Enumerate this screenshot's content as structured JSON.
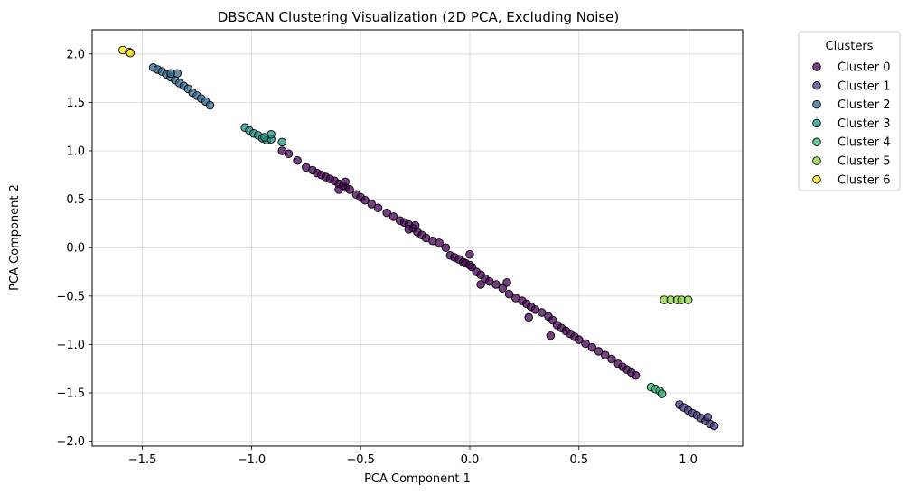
{
  "chart_data": {
    "type": "scatter",
    "title": "DBSCAN Clustering Visualization (2D PCA, Excluding Noise)",
    "xlabel": "PCA Component 1",
    "ylabel": "PCA Component 2",
    "xlim": [
      -1.73,
      1.25
    ],
    "ylim": [
      -2.05,
      2.25
    ],
    "xticks": [
      -1.5,
      -1.0,
      -0.5,
      0.0,
      0.5,
      1.0
    ],
    "xtick_labels": [
      "−1.5",
      "−1.0",
      "−0.5",
      "0.0",
      "0.5",
      "1.0"
    ],
    "yticks": [
      -2.0,
      -1.5,
      -1.0,
      -0.5,
      0.0,
      0.5,
      1.0,
      1.5,
      2.0
    ],
    "ytick_labels": [
      "−2.0",
      "−1.5",
      "−1.0",
      "−0.5",
      "0.0",
      "0.5",
      "1.0",
      "1.5",
      "2.0"
    ],
    "grid": true,
    "legend": {
      "title": "Clusters",
      "placement": "outside-upper-right"
    },
    "series": [
      {
        "name": "Cluster 0",
        "color": "#440154",
        "x": [
          -0.86,
          -0.83,
          -0.79,
          -0.75,
          -0.72,
          -0.7,
          -0.68,
          -0.66,
          -0.64,
          -0.62,
          -0.6,
          -0.58,
          -0.57,
          -0.55,
          -0.52,
          -0.5,
          -0.48,
          -0.45,
          -0.42,
          -0.38,
          -0.35,
          -0.32,
          -0.3,
          -0.28,
          -0.26,
          -0.24,
          -0.22,
          -0.2,
          -0.17,
          -0.14,
          -0.11,
          -0.09,
          -0.07,
          -0.05,
          -0.03,
          -0.02,
          0.0,
          0.01,
          0.03,
          0.05,
          0.07,
          0.09,
          0.12,
          0.15,
          0.18,
          0.21,
          0.24,
          0.26,
          0.28,
          0.3,
          0.33,
          0.36,
          0.38,
          0.4,
          0.42,
          0.44,
          0.46,
          0.48,
          0.5,
          0.53,
          0.56,
          0.59,
          0.62,
          0.65,
          0.68,
          0.7,
          0.72,
          0.74,
          0.76,
          -0.57,
          -0.25,
          0.0,
          0.05,
          0.17,
          0.27,
          0.37,
          -0.6,
          -0.28
        ],
        "y": [
          1.0,
          0.97,
          0.9,
          0.83,
          0.8,
          0.77,
          0.75,
          0.73,
          0.71,
          0.69,
          0.66,
          0.64,
          0.62,
          0.6,
          0.55,
          0.52,
          0.49,
          0.45,
          0.41,
          0.36,
          0.32,
          0.28,
          0.26,
          0.24,
          0.2,
          0.16,
          0.13,
          0.1,
          0.07,
          0.05,
          0.0,
          -0.08,
          -0.1,
          -0.12,
          -0.15,
          -0.16,
          -0.18,
          -0.2,
          -0.25,
          -0.28,
          -0.32,
          -0.35,
          -0.38,
          -0.42,
          -0.48,
          -0.52,
          -0.55,
          -0.58,
          -0.61,
          -0.64,
          -0.67,
          -0.71,
          -0.75,
          -0.8,
          -0.83,
          -0.86,
          -0.89,
          -0.92,
          -0.95,
          -0.99,
          -1.03,
          -1.07,
          -1.11,
          -1.15,
          -1.2,
          -1.23,
          -1.26,
          -1.29,
          -1.32,
          0.68,
          0.23,
          -0.07,
          -0.38,
          -0.36,
          -0.72,
          -0.91,
          0.6,
          0.19
        ]
      },
      {
        "name": "Cluster 1",
        "color": "#443983",
        "x": [
          0.96,
          0.98,
          1.0,
          1.02,
          1.04,
          1.06,
          1.08,
          1.1,
          1.12,
          1.09
        ],
        "y": [
          -1.62,
          -1.65,
          -1.68,
          -1.71,
          -1.73,
          -1.76,
          -1.79,
          -1.82,
          -1.84,
          -1.75
        ]
      },
      {
        "name": "Cluster 2",
        "color": "#31688e",
        "x": [
          -1.45,
          -1.43,
          -1.41,
          -1.39,
          -1.37,
          -1.35,
          -1.33,
          -1.31,
          -1.29,
          -1.27,
          -1.25,
          -1.23,
          -1.21,
          -1.19,
          -1.34,
          -1.37
        ],
        "y": [
          1.86,
          1.84,
          1.82,
          1.79,
          1.76,
          1.73,
          1.7,
          1.67,
          1.64,
          1.6,
          1.57,
          1.54,
          1.51,
          1.47,
          1.8,
          1.8
        ]
      },
      {
        "name": "Cluster 3",
        "color": "#21918c",
        "x": [
          -1.03,
          -1.01,
          -0.99,
          -0.97,
          -0.95,
          -0.93,
          -0.91,
          -0.91,
          -0.86,
          -0.94
        ],
        "y": [
          1.24,
          1.21,
          1.18,
          1.16,
          1.13,
          1.11,
          1.12,
          1.17,
          1.09,
          1.14
        ]
      },
      {
        "name": "Cluster 4",
        "color": "#35b779",
        "x": [
          0.83,
          0.85,
          0.87,
          0.88
        ],
        "y": [
          -1.44,
          -1.46,
          -1.48,
          -1.51
        ]
      },
      {
        "name": "Cluster 5",
        "color": "#90d743",
        "x": [
          0.89,
          0.92,
          0.95,
          0.97,
          1.0
        ],
        "y": [
          -0.54,
          -0.54,
          -0.54,
          -0.54,
          -0.54
        ]
      },
      {
        "name": "Cluster 6",
        "color": "#fde725",
        "x": [
          -1.59,
          -1.56,
          -1.555
        ],
        "y": [
          2.04,
          2.02,
          2.01
        ]
      }
    ]
  }
}
